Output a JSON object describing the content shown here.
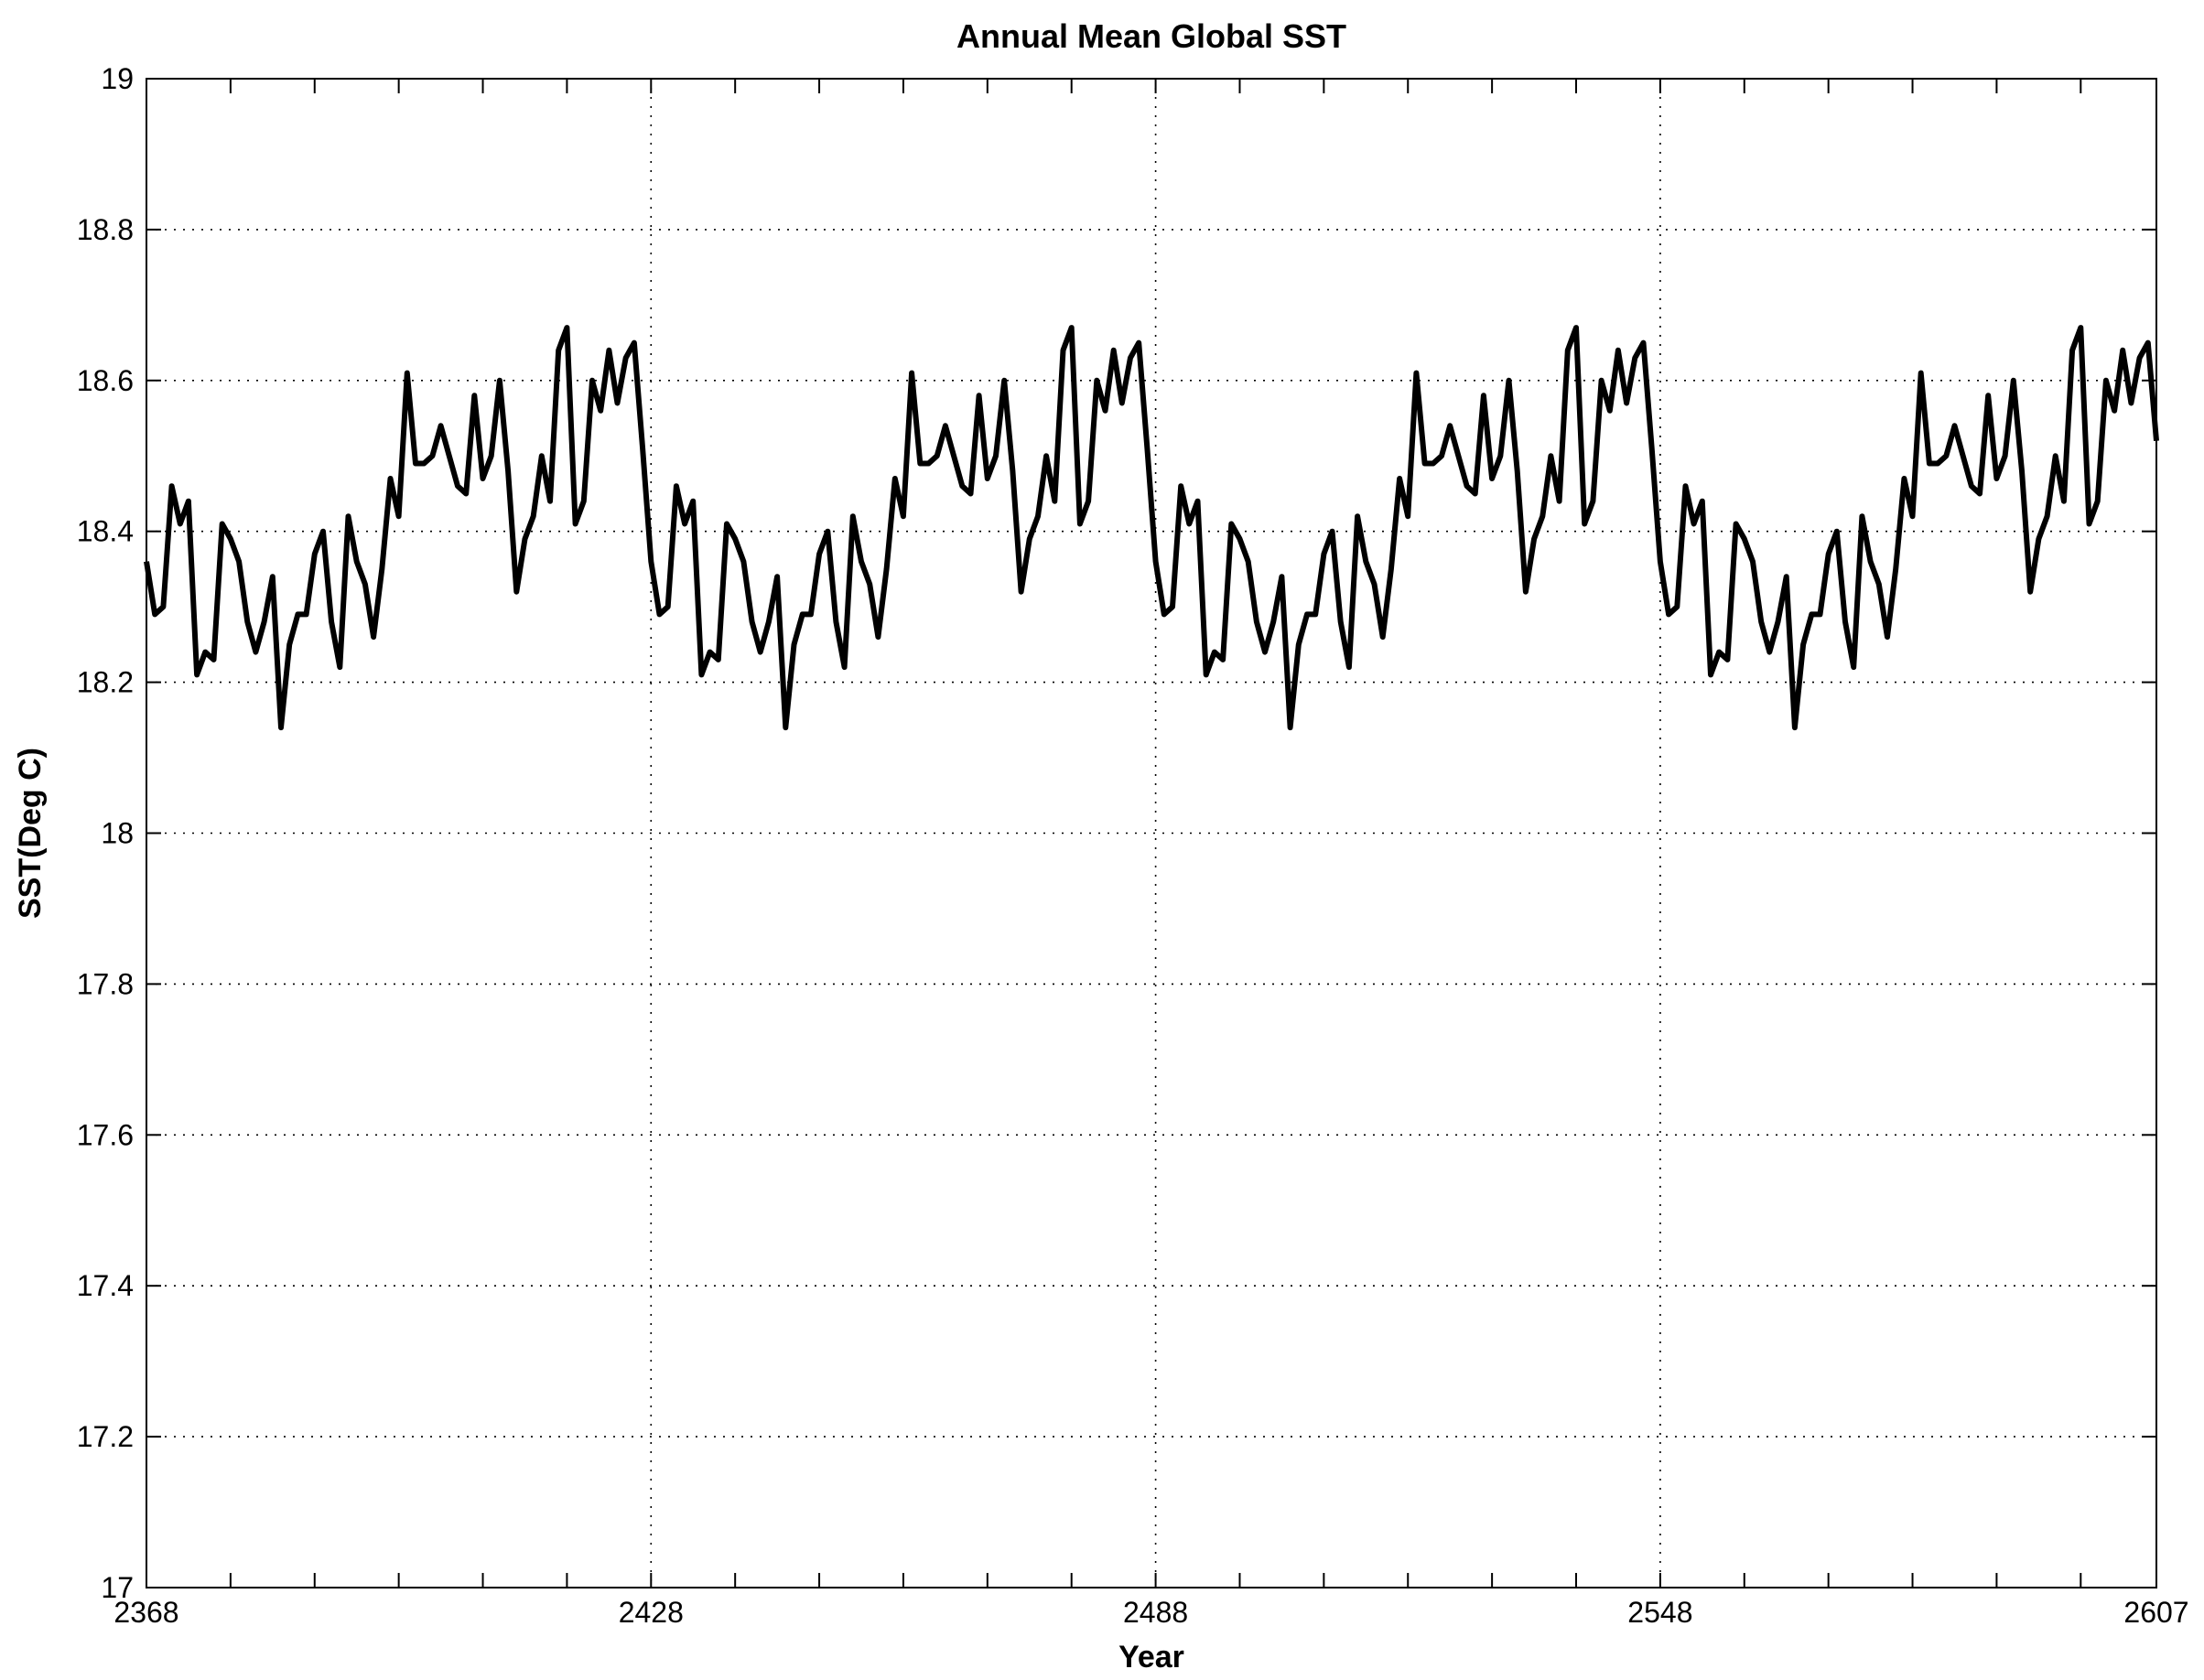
{
  "chart_data": {
    "type": "line",
    "title": "Annual Mean Global SST",
    "xlabel": "Year",
    "ylabel": "SST(Deg C)",
    "xlim": [
      2368,
      2607
    ],
    "ylim": [
      17,
      19
    ],
    "x_ticks": [
      2368,
      2428,
      2488,
      2548,
      2607
    ],
    "y_ticks": [
      17,
      17.2,
      17.4,
      17.6,
      17.8,
      18,
      18.2,
      18.4,
      18.6,
      18.8,
      19
    ],
    "y_tick_labels": [
      "17",
      "17.2",
      "17.4",
      "17.6",
      "17.8",
      "18",
      "18.2",
      "18.4",
      "18.6",
      "18.8",
      "19"
    ],
    "grid": true,
    "grid_style": "dotted",
    "line_color": "#000000",
    "x_start": 2368,
    "x_step": 1,
    "series": [
      {
        "values": [
          18.36,
          18.29,
          18.3,
          18.46,
          18.41,
          18.44,
          18.21,
          18.24,
          18.23,
          18.41,
          18.39,
          18.36,
          18.28,
          18.24,
          18.28,
          18.34,
          18.14,
          18.25,
          18.29,
          18.29,
          18.37,
          18.4,
          18.28,
          18.22,
          18.42,
          18.36,
          18.33,
          18.26,
          18.35,
          18.47,
          18.42,
          18.61,
          18.49,
          18.49,
          18.5,
          18.54,
          18.5,
          18.46,
          18.45,
          18.58,
          18.47,
          18.5,
          18.6,
          18.48,
          18.32,
          18.39,
          18.42,
          18.5,
          18.44,
          18.64,
          18.67,
          18.41,
          18.44,
          18.6,
          18.56,
          18.64,
          18.57,
          18.63,
          18.65,
          18.51,
          18.36,
          18.29,
          18.3,
          18.46,
          18.41,
          18.44,
          18.21,
          18.24,
          18.23,
          18.41,
          18.39,
          18.36,
          18.28,
          18.24,
          18.28,
          18.34,
          18.14,
          18.25,
          18.29,
          18.29,
          18.37,
          18.4,
          18.28,
          18.22,
          18.42,
          18.36,
          18.33,
          18.26,
          18.35,
          18.47,
          18.42,
          18.61,
          18.49,
          18.49,
          18.5,
          18.54,
          18.5,
          18.46,
          18.45,
          18.58,
          18.47,
          18.5,
          18.6,
          18.48,
          18.32,
          18.39,
          18.42,
          18.5,
          18.44,
          18.64,
          18.67,
          18.41,
          18.44,
          18.6,
          18.56,
          18.64,
          18.57,
          18.63,
          18.65,
          18.51,
          18.36,
          18.29,
          18.3,
          18.46,
          18.41,
          18.44,
          18.21,
          18.24,
          18.23,
          18.41,
          18.39,
          18.36,
          18.28,
          18.24,
          18.28,
          18.34,
          18.14,
          18.25,
          18.29,
          18.29,
          18.37,
          18.4,
          18.28,
          18.22,
          18.42,
          18.36,
          18.33,
          18.26,
          18.35,
          18.47,
          18.42,
          18.61,
          18.49,
          18.49,
          18.5,
          18.54,
          18.5,
          18.46,
          18.45,
          18.58,
          18.47,
          18.5,
          18.6,
          18.48,
          18.32,
          18.39,
          18.42,
          18.5,
          18.44,
          18.64,
          18.67,
          18.41,
          18.44,
          18.6,
          18.56,
          18.64,
          18.57,
          18.63,
          18.65,
          18.51,
          18.36,
          18.29,
          18.3,
          18.46,
          18.41,
          18.44,
          18.21,
          18.24,
          18.23,
          18.41,
          18.39,
          18.36,
          18.28,
          18.24,
          18.28,
          18.34,
          18.14,
          18.25,
          18.29,
          18.29,
          18.37,
          18.4,
          18.28,
          18.22,
          18.42,
          18.36,
          18.33,
          18.26,
          18.35,
          18.47,
          18.42,
          18.61,
          18.49,
          18.49,
          18.5,
          18.54,
          18.5,
          18.46,
          18.45,
          18.58,
          18.47,
          18.5,
          18.6,
          18.48,
          18.32,
          18.39,
          18.42,
          18.5,
          18.44,
          18.64,
          18.67,
          18.41,
          18.44,
          18.6,
          18.56,
          18.64,
          18.57,
          18.63,
          18.65,
          18.52
        ]
      }
    ]
  }
}
